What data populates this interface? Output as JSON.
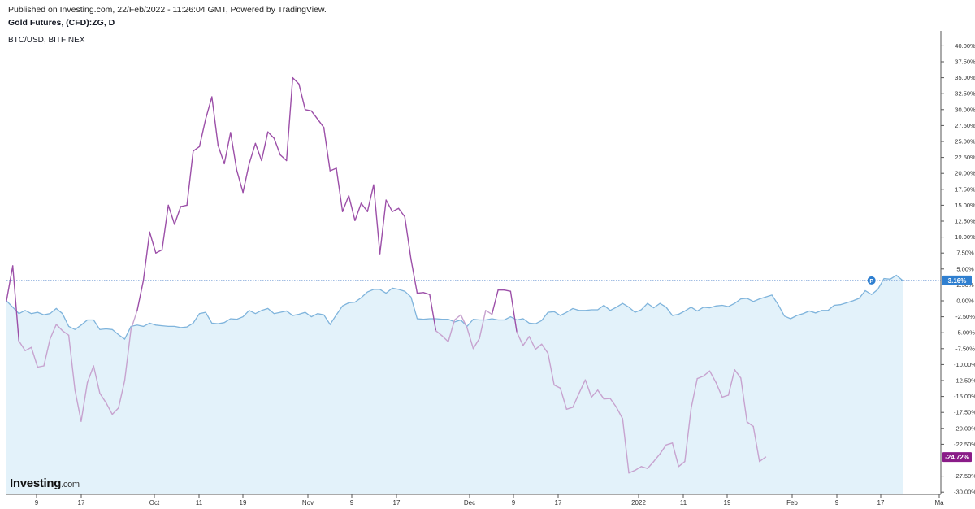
{
  "header": {
    "published": "Published on Investing.com, 22/Feb/2022 - 11:26:04 GMT, Powered by TradingView.",
    "instrument": "Gold Futures, (CFD):ZG, D",
    "overlay": "BTC/USD, BITFINEX"
  },
  "logo": {
    "main": "Investing",
    "suffix": ".com"
  },
  "colors": {
    "gold_line": "#7fb4dc",
    "gold_fill": "#e3f2fa",
    "btc_line": "#9c4fa8",
    "btc_line_faded": "#c7a3cf",
    "hline": "#4a7fc8",
    "gold_badge": "#2f7fd0",
    "btc_badge": "#8a1c88"
  },
  "chart_data": {
    "type": "line",
    "yunit": "%",
    "ylim": [
      -30,
      42.5
    ],
    "yticks": [
      "40.00%",
      "37.50%",
      "35.00%",
      "32.50%",
      "30.00%",
      "27.50%",
      "25.00%",
      "22.50%",
      "20.00%",
      "17.50%",
      "15.00%",
      "12.50%",
      "10.00%",
      "7.50%",
      "5.00%",
      "2.50%",
      "0.00%",
      "-2.50%",
      "-5.00%",
      "-7.50%",
      "-10.00%",
      "-12.50%",
      "-15.00%",
      "-17.50%",
      "-20.00%",
      "-22.50%",
      "-27.50%",
      "-30.00%"
    ],
    "xticks": [
      "9",
      "17",
      "Oct",
      "11",
      "19",
      "Nov",
      "9",
      "17",
      "Dec",
      "9",
      "17",
      "2022",
      "11",
      "19",
      "Feb",
      "9",
      "17",
      "Ma"
    ],
    "badges": {
      "gold": "3.16%",
      "btc": "-24.72%",
      "marker": "P"
    },
    "series": [
      {
        "name": "Gold Futures, (CFD):ZG, D",
        "values": [
          0,
          -1,
          -2,
          -1.5,
          -2,
          -1.8,
          -2.2,
          -2,
          -1.2,
          -2,
          -4,
          -4.5,
          -3.8,
          -3,
          -3,
          -4.5,
          -4.4,
          -4.5,
          -5.3,
          -6,
          -4,
          -3.8,
          -4,
          -3.5,
          -3.8,
          -3.9,
          -4,
          -4,
          -4.2,
          -4.1,
          -3.5,
          -2,
          -1.8,
          -3.5,
          -3.6,
          -3.4,
          -2.8,
          -2.9,
          -2.5,
          -1.5,
          -2,
          -1.5,
          -1.2,
          -2,
          -1.8,
          -1.6,
          -2.3,
          -2.1,
          -1.8,
          -2.5,
          -2,
          -2.2,
          -3.7,
          -2.2,
          -0.8,
          -0.3,
          -0.2,
          0.5,
          1.4,
          1.8,
          1.8,
          1.2,
          2,
          1.8,
          1.5,
          0.6,
          -2.8,
          -2.9,
          -2.8,
          -2.8,
          -2.9,
          -2.9,
          -3.3,
          -3,
          -4,
          -2.9,
          -3,
          -3,
          -2.8,
          -3,
          -3,
          -2.5,
          -3,
          -2.8,
          -3.5,
          -3.6,
          -3.1,
          -1.8,
          -1.7,
          -2.3,
          -1.8,
          -1.2,
          -1.5,
          -1.5,
          -1.4,
          -1.4,
          -0.7,
          -1.5,
          -1,
          -0.4,
          -1,
          -1.8,
          -1.4,
          -0.4,
          -1.1,
          -0.4,
          -1,
          -2.3,
          -2.1,
          -1.6,
          -1,
          -1.6,
          -1,
          -1.1,
          -0.8,
          -0.7,
          -0.9,
          -0.4,
          0.3,
          0.4,
          -0.1,
          0.3,
          0.6,
          0.9,
          -0.6,
          -2.4,
          -2.8,
          -2.3,
          -2,
          -1.6,
          -1.9,
          -1.5,
          -1.5,
          -0.7,
          -0.6,
          -0.3,
          0,
          0.4,
          1.6,
          1,
          1.8,
          3.5,
          3.4,
          4,
          3.2
        ]
      },
      {
        "name": "BTC/USD, BITFINEX",
        "values": [
          0,
          5.5,
          -6.3,
          -7.8,
          -7.3,
          -10.4,
          -10.2,
          -6,
          -3.7,
          -4.7,
          -5.4,
          -14,
          -18.9,
          -12.8,
          -10.2,
          -14.5,
          -16,
          -17.8,
          -16.8,
          -12.5,
          -4.5,
          -1.5,
          3.2,
          10.8,
          7.5,
          8,
          15,
          12,
          14.8,
          15,
          23.5,
          24.2,
          28.5,
          32,
          24.4,
          21.5,
          26.4,
          20.5,
          17,
          21.5,
          24.7,
          22,
          26.5,
          25.5,
          22.9,
          22,
          35,
          34,
          30,
          29.8,
          28.5,
          27.2,
          20.4,
          20.8,
          14,
          16.5,
          12.6,
          15.3,
          14,
          18.2,
          7.4,
          15.8,
          14,
          14.5,
          13.2,
          6.5,
          1.2,
          1.3,
          1,
          -4.7,
          -5.5,
          -6.4,
          -3,
          -2.2,
          -4.2,
          -7.5,
          -5.9,
          -1.5,
          -2.1,
          1.7,
          1.7,
          1.5,
          -4.9,
          -7,
          -5.6,
          -7.6,
          -6.8,
          -8.2,
          -13.2,
          -13.7,
          -17,
          -16.7,
          -14.5,
          -12.4,
          -15.1,
          -14,
          -15.4,
          -15.3,
          -16.7,
          -18.5,
          -27,
          -26.6,
          -26,
          -26.3,
          -25.2,
          -24,
          -22.6,
          -22.3,
          -26,
          -25.2,
          -16.9,
          -12.2,
          -11.8,
          -11,
          -12.8,
          -15.1,
          -14.8,
          -10.8,
          -12.1,
          -19,
          -19.7,
          -25.2,
          -24.5
        ]
      }
    ]
  }
}
